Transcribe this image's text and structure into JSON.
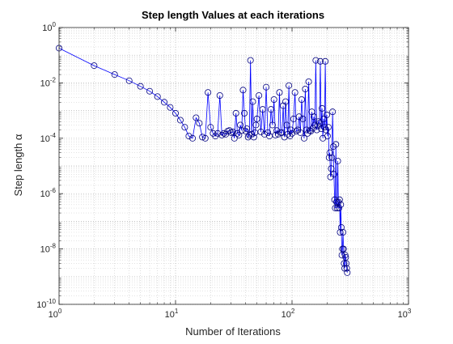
{
  "chart_data": {
    "type": "line",
    "title": "Step length Values at each iterations",
    "xlabel": "Number of Iterations",
    "ylabel": "Step length α",
    "x_scale": "log",
    "y_scale": "log",
    "xlim": [
      1,
      1000
    ],
    "ylim": [
      1e-10,
      1
    ],
    "grid": true,
    "x_ticks": [
      {
        "value": 1,
        "base": "10",
        "exp": "0"
      },
      {
        "value": 10,
        "base": "10",
        "exp": "1"
      },
      {
        "value": 100,
        "base": "10",
        "exp": "2"
      },
      {
        "value": 1000,
        "base": "10",
        "exp": "3"
      }
    ],
    "y_ticks": [
      {
        "value": 1,
        "base": "10",
        "exp": "0"
      },
      {
        "value": 0.01,
        "base": "10",
        "exp": "-2"
      },
      {
        "value": 0.0001,
        "base": "10",
        "exp": "-4"
      },
      {
        "value": 1e-06,
        "base": "10",
        "exp": "-6"
      },
      {
        "value": 1e-08,
        "base": "10",
        "exp": "-8"
      },
      {
        "value": 1e-10,
        "base": "10",
        "exp": "-10"
      }
    ],
    "series": [
      {
        "line_color": "#0000ff",
        "marker": "circle",
        "marker_color": "#000080",
        "x": [
          1,
          2,
          3,
          4,
          5,
          6,
          7,
          8,
          9,
          10,
          11,
          12,
          13,
          14,
          15,
          16,
          17,
          18,
          19,
          20,
          21,
          22,
          23,
          24,
          25,
          26,
          27,
          28,
          29,
          30,
          31,
          32,
          33,
          34,
          35,
          36,
          37,
          38,
          39,
          40,
          41,
          42,
          43,
          44,
          45,
          46,
          47,
          48,
          49,
          50,
          52,
          54,
          56,
          58,
          60,
          62,
          64,
          66,
          68,
          70,
          72,
          74,
          76,
          78,
          80,
          82,
          84,
          86,
          88,
          90,
          92,
          94,
          96,
          98,
          100,
          103,
          106,
          109,
          112,
          115,
          118,
          121,
          124,
          127,
          130,
          133,
          136,
          139,
          142,
          145,
          148,
          151,
          154,
          157,
          160,
          163,
          166,
          169,
          172,
          175,
          178,
          181,
          184,
          187,
          190,
          193,
          196,
          199,
          202,
          205,
          208,
          211,
          214,
          217,
          220,
          223,
          226,
          229,
          232,
          235,
          238,
          241,
          244,
          247,
          250,
          253,
          256,
          259,
          262,
          265,
          268,
          271,
          274,
          277,
          280,
          283,
          286,
          289,
          292,
          295,
          298
        ],
        "y": [
          0.18,
          0.042,
          0.02,
          0.012,
          0.0075,
          0.005,
          0.0032,
          0.002,
          0.0013,
          0.0008,
          0.00045,
          0.00025,
          0.00012,
          0.0001,
          0.00055,
          0.00035,
          0.00011,
          0.0001,
          0.0045,
          0.00025,
          0.00015,
          0.00012,
          0.00015,
          0.0035,
          0.00013,
          0.00015,
          0.00014,
          0.00018,
          0.00019,
          0.00016,
          0.00017,
          0.0001,
          0.0008,
          0.00015,
          0.00013,
          0.0003,
          0.00019,
          0.0055,
          0.0008,
          0.00018,
          0.00022,
          0.00011,
          0.00013,
          0.065,
          0.00014,
          0.0021,
          0.00011,
          0.00016,
          0.0003,
          0.0005,
          0.0035,
          0.00017,
          0.0011,
          0.00014,
          0.007,
          0.00016,
          0.00012,
          0.0011,
          0.0003,
          0.0025,
          0.00013,
          0.00019,
          0.00014,
          0.0045,
          0.00016,
          0.00016,
          0.0015,
          0.00011,
          0.0021,
          0.0003,
          0.00014,
          0.008,
          0.00012,
          0.0002,
          0.00015,
          0.0005,
          0.0045,
          0.00018,
          0.0002,
          0.0006,
          0.00016,
          0.0025,
          0.0005,
          0.0001,
          0.006,
          0.0002,
          0.00015,
          0.011,
          0.00019,
          0.00018,
          0.0009,
          0.00023,
          0.0006,
          0.0003,
          0.065,
          0.0002,
          0.00028,
          0.0004,
          0.00035,
          0.06,
          0.00022,
          0.0012,
          0.0001,
          0.0005,
          0.00025,
          0.06,
          0.0002,
          0.0007,
          0.00012,
          0.00025,
          2e-05,
          3e-05,
          4e-06,
          8e-06,
          2e-05,
          0.0009,
          5e-05,
          5e-06,
          6e-07,
          3e-07,
          6e-05,
          5e-07,
          3e-07,
          1.5e-05,
          5e-07,
          3e-07,
          6e-07,
          4e-08,
          4e-07,
          6e-08,
          6e-09,
          1e-08,
          4e-08,
          1e-08,
          3e-09,
          2e-09,
          6e-09,
          5e-09,
          3e-09,
          2e-09,
          1.4e-09
        ]
      }
    ]
  }
}
